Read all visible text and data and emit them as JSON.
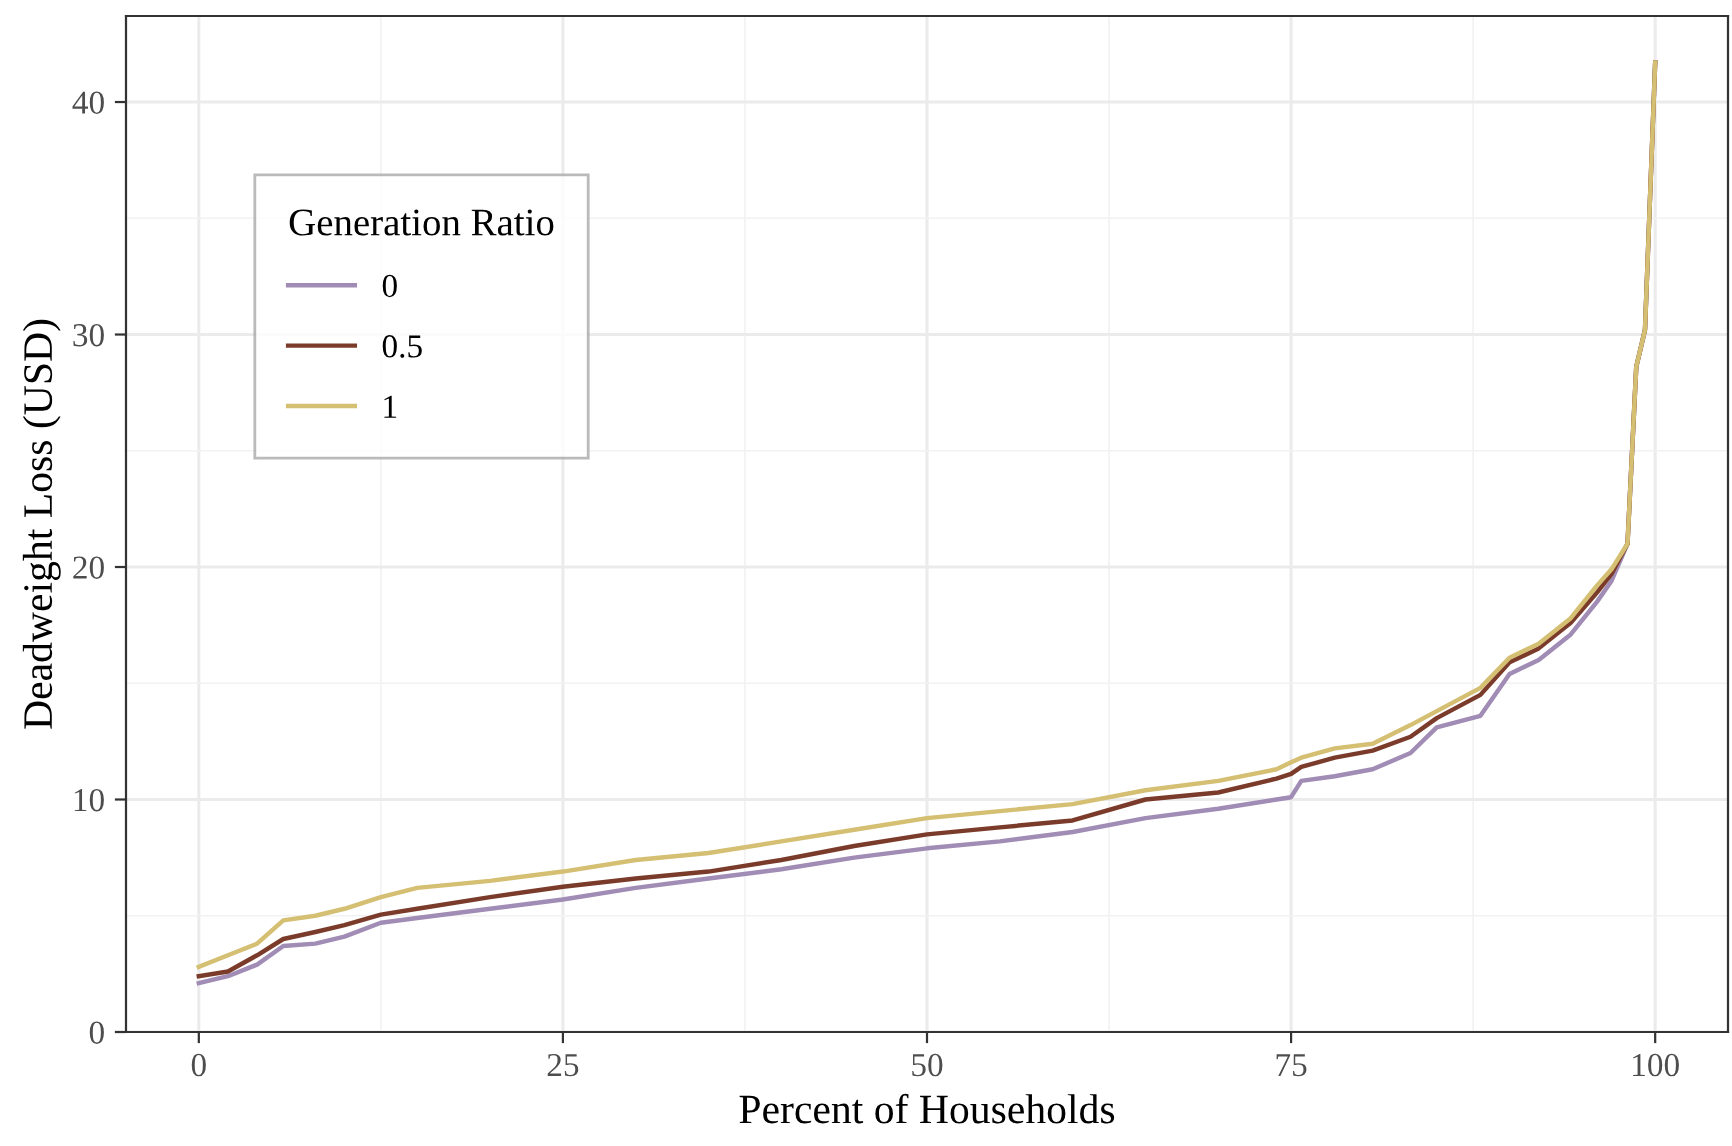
{
  "chart_data": {
    "type": "line",
    "xlabel": "Percent of Households",
    "ylabel": "Deadweight Loss (USD)",
    "legend_title": "Generation Ratio",
    "legend": "top left",
    "grid": true,
    "line_style": "solid",
    "marker": "none",
    "xlim": [
      -5,
      105
    ],
    "xticks": [
      0,
      25,
      50,
      75,
      100
    ],
    "ylim": [
      0,
      43.7
    ],
    "yticks": [
      0,
      10,
      20,
      30,
      40
    ],
    "x": [
      0,
      2,
      4,
      5.8,
      8,
      10,
      12.5,
      15,
      20,
      25,
      30,
      35,
      40,
      45,
      50,
      55,
      60,
      65,
      70,
      74,
      75,
      75.7,
      78,
      80.6,
      83.2,
      85,
      88,
      90,
      92,
      94.2,
      96,
      97,
      98.1,
      98.7,
      99.3,
      100
    ],
    "series": [
      {
        "name": "0",
        "color": "#a08cb4",
        "values": [
          2.1,
          2.4,
          2.9,
          3.7,
          3.8,
          4.1,
          4.7,
          4.9,
          5.3,
          5.7,
          6.2,
          6.6,
          7.0,
          7.5,
          7.9,
          8.2,
          8.6,
          9.2,
          9.6,
          10.0,
          10.1,
          10.8,
          11.0,
          11.3,
          12.0,
          13.1,
          13.6,
          15.4,
          16.0,
          17.1,
          18.5,
          19.4,
          21.0,
          28.6,
          30.2,
          41.7
        ]
      },
      {
        "name": "0.5",
        "color": "#7b3b2a",
        "values": [
          2.4,
          2.6,
          3.3,
          4.0,
          4.3,
          4.6,
          5.05,
          5.3,
          5.8,
          6.25,
          6.6,
          6.9,
          7.4,
          8.0,
          8.5,
          8.8,
          9.1,
          10.0,
          10.3,
          10.9,
          11.1,
          11.4,
          11.8,
          12.1,
          12.7,
          13.5,
          14.5,
          15.9,
          16.5,
          17.6,
          18.9,
          19.7,
          21.0,
          28.6,
          30.2,
          41.7
        ]
      },
      {
        "name": "1",
        "color": "#d4bf72",
        "values": [
          2.8,
          3.3,
          3.8,
          4.8,
          5.0,
          5.3,
          5.8,
          6.2,
          6.5,
          6.9,
          7.4,
          7.7,
          8.2,
          8.7,
          9.2,
          9.5,
          9.8,
          10.4,
          10.8,
          11.3,
          11.6,
          11.8,
          12.2,
          12.4,
          13.2,
          13.8,
          14.8,
          16.1,
          16.7,
          17.8,
          19.2,
          19.9,
          21.0,
          28.6,
          30.2,
          41.7
        ]
      }
    ]
  }
}
